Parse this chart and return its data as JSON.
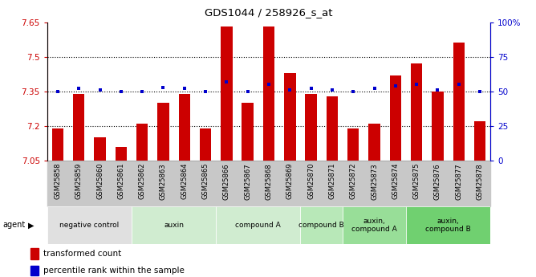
{
  "title": "GDS1044 / 258926_s_at",
  "samples": [
    "GSM25858",
    "GSM25859",
    "GSM25860",
    "GSM25861",
    "GSM25862",
    "GSM25863",
    "GSM25864",
    "GSM25865",
    "GSM25866",
    "GSM25867",
    "GSM25868",
    "GSM25869",
    "GSM25870",
    "GSM25871",
    "GSM25872",
    "GSM25873",
    "GSM25874",
    "GSM25875",
    "GSM25876",
    "GSM25877",
    "GSM25878"
  ],
  "bar_values": [
    7.19,
    7.34,
    7.15,
    7.11,
    7.21,
    7.3,
    7.34,
    7.19,
    7.63,
    7.3,
    7.63,
    7.43,
    7.34,
    7.33,
    7.19,
    7.21,
    7.42,
    7.47,
    7.35,
    7.56,
    7.22
  ],
  "dot_values": [
    50,
    52,
    51,
    50,
    50,
    53,
    52,
    50,
    57,
    50,
    55,
    51,
    52,
    51,
    50,
    52,
    54,
    55,
    51,
    55,
    50
  ],
  "ymin": 7.05,
  "ymax": 7.65,
  "yticks": [
    7.05,
    7.2,
    7.35,
    7.5,
    7.65
  ],
  "ytick_labels": [
    "7.05",
    "7.2",
    "7.35",
    "7.5",
    "7.65"
  ],
  "grid_yticks": [
    7.2,
    7.35,
    7.5
  ],
  "y2min": 0,
  "y2max": 100,
  "y2ticks": [
    0,
    25,
    50,
    75,
    100
  ],
  "y2tick_labels": [
    "0",
    "25",
    "50",
    "75",
    "100%"
  ],
  "bar_color": "#cc0000",
  "dot_color": "#0000cc",
  "groups": [
    {
      "label": "negative control",
      "start": 0,
      "end": 4,
      "color": "#e0e0e0"
    },
    {
      "label": "auxin",
      "start": 4,
      "end": 8,
      "color": "#d0ecd0"
    },
    {
      "label": "compound A",
      "start": 8,
      "end": 12,
      "color": "#d0ecd0"
    },
    {
      "label": "compound B",
      "start": 12,
      "end": 14,
      "color": "#b8e8b8"
    },
    {
      "label": "auxin,\ncompound A",
      "start": 14,
      "end": 17,
      "color": "#98de98"
    },
    {
      "label": "auxin,\ncompound B",
      "start": 17,
      "end": 21,
      "color": "#70d070"
    }
  ],
  "legend_bar": "transformed count",
  "legend_dot": "percentile rank within the sample",
  "left_axis_color": "#cc0000",
  "right_axis_color": "#0000cc",
  "tick_bg_color": "#c8c8c8",
  "bar_border_color": "#000000"
}
